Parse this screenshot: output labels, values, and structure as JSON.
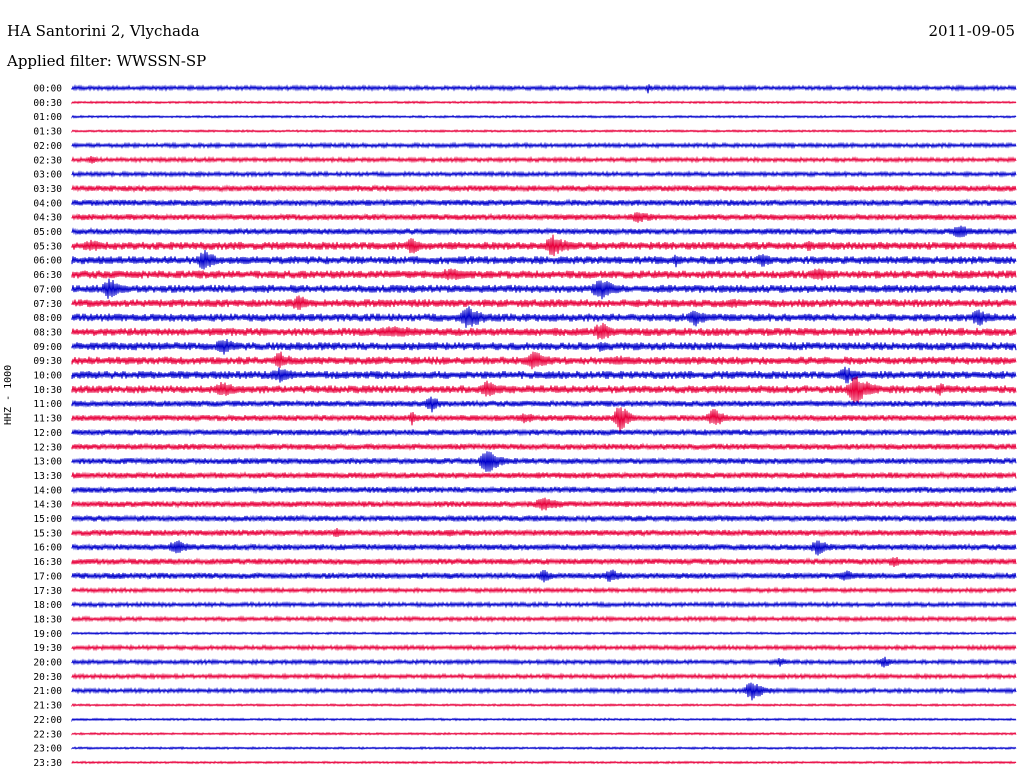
{
  "header": {
    "station": "HA Santorini 2, Vlychada",
    "date": "2011-09-05",
    "filter": "Applied filter: WWSSN-SP"
  },
  "chart_data": {
    "type": "line",
    "title": "HA Santorini 2, Vlychada",
    "ylabel": "HHZ - 1000",
    "xlabel": "",
    "grid": false,
    "colors": [
      "#0000cc",
      "#e8003c"
    ],
    "rows": [
      "00:00",
      "00:30",
      "01:00",
      "01:30",
      "02:00",
      "02:30",
      "03:00",
      "03:30",
      "04:00",
      "04:30",
      "05:00",
      "05:30",
      "06:00",
      "06:30",
      "07:00",
      "07:30",
      "08:00",
      "08:30",
      "09:00",
      "09:30",
      "10:00",
      "10:30",
      "11:00",
      "11:30",
      "12:00",
      "12:30",
      "13:00",
      "13:30",
      "14:00",
      "14:30",
      "15:00",
      "15:30",
      "16:00",
      "16:30",
      "17:00",
      "17:30",
      "18:00",
      "18:30",
      "19:00",
      "19:30",
      "20:00",
      "20:30",
      "21:00",
      "21:30",
      "22:00",
      "22:30",
      "23:00",
      "23:30"
    ],
    "noise_level": [
      2,
      1,
      1,
      1,
      2,
      2,
      2,
      3,
      3,
      3,
      3,
      4,
      4,
      4,
      4,
      4,
      4,
      4,
      4,
      4,
      4,
      4,
      3,
      3,
      3,
      3,
      3,
      3,
      3,
      3,
      3,
      3,
      3,
      3,
      3,
      2,
      2,
      2,
      1,
      2,
      2,
      2,
      2,
      1,
      1,
      1,
      1,
      1
    ],
    "events": [
      {
        "row": 0,
        "x": 0.61,
        "width": 0.01,
        "amp": 6
      },
      {
        "row": 5,
        "x": 0.02,
        "width": 0.02,
        "amp": 5
      },
      {
        "row": 9,
        "x": 0.6,
        "width": 0.07,
        "amp": 6
      },
      {
        "row": 10,
        "x": 0.94,
        "width": 0.04,
        "amp": 8
      },
      {
        "row": 11,
        "x": 0.02,
        "width": 0.06,
        "amp": 7
      },
      {
        "row": 11,
        "x": 0.36,
        "width": 0.03,
        "amp": 10
      },
      {
        "row": 11,
        "x": 0.51,
        "width": 0.05,
        "amp": 12
      },
      {
        "row": 11,
        "x": 0.78,
        "width": 0.03,
        "amp": 6
      },
      {
        "row": 12,
        "x": 0.14,
        "width": 0.04,
        "amp": 12
      },
      {
        "row": 12,
        "x": 0.64,
        "width": 0.02,
        "amp": 8
      },
      {
        "row": 12,
        "x": 0.73,
        "width": 0.04,
        "amp": 8
      },
      {
        "row": 13,
        "x": 0.4,
        "width": 0.08,
        "amp": 7
      },
      {
        "row": 13,
        "x": 0.79,
        "width": 0.05,
        "amp": 8
      },
      {
        "row": 14,
        "x": 0.04,
        "width": 0.04,
        "amp": 12
      },
      {
        "row": 14,
        "x": 0.56,
        "width": 0.05,
        "amp": 12
      },
      {
        "row": 15,
        "x": 0.24,
        "width": 0.04,
        "amp": 9
      },
      {
        "row": 15,
        "x": 0.7,
        "width": 0.04,
        "amp": 6
      },
      {
        "row": 16,
        "x": 0.42,
        "width": 0.05,
        "amp": 13
      },
      {
        "row": 16,
        "x": 0.66,
        "width": 0.04,
        "amp": 10
      },
      {
        "row": 16,
        "x": 0.96,
        "width": 0.04,
        "amp": 10
      },
      {
        "row": 17,
        "x": 0.34,
        "width": 0.12,
        "amp": 7
      },
      {
        "row": 17,
        "x": 0.56,
        "width": 0.04,
        "amp": 11
      },
      {
        "row": 18,
        "x": 0.16,
        "width": 0.04,
        "amp": 10
      },
      {
        "row": 18,
        "x": 0.56,
        "width": 0.02,
        "amp": 8
      },
      {
        "row": 19,
        "x": 0.22,
        "width": 0.04,
        "amp": 10
      },
      {
        "row": 19,
        "x": 0.49,
        "width": 0.05,
        "amp": 11
      },
      {
        "row": 19,
        "x": 0.58,
        "width": 0.06,
        "amp": 6
      },
      {
        "row": 20,
        "x": 0.22,
        "width": 0.06,
        "amp": 8
      },
      {
        "row": 20,
        "x": 0.82,
        "width": 0.04,
        "amp": 10
      },
      {
        "row": 21,
        "x": 0.16,
        "width": 0.05,
        "amp": 9
      },
      {
        "row": 21,
        "x": 0.44,
        "width": 0.04,
        "amp": 10
      },
      {
        "row": 21,
        "x": 0.83,
        "width": 0.05,
        "amp": 16
      },
      {
        "row": 21,
        "x": 0.92,
        "width": 0.03,
        "amp": 7
      },
      {
        "row": 22,
        "x": 0.38,
        "width": 0.03,
        "amp": 10
      },
      {
        "row": 23,
        "x": 0.36,
        "width": 0.02,
        "amp": 8
      },
      {
        "row": 23,
        "x": 0.48,
        "width": 0.05,
        "amp": 6
      },
      {
        "row": 23,
        "x": 0.58,
        "width": 0.03,
        "amp": 16
      },
      {
        "row": 23,
        "x": 0.68,
        "width": 0.04,
        "amp": 10
      },
      {
        "row": 26,
        "x": 0.44,
        "width": 0.04,
        "amp": 14
      },
      {
        "row": 29,
        "x": 0.5,
        "width": 0.07,
        "amp": 7
      },
      {
        "row": 31,
        "x": 0.28,
        "width": 0.02,
        "amp": 7
      },
      {
        "row": 31,
        "x": 0.4,
        "width": 0.02,
        "amp": 5
      },
      {
        "row": 32,
        "x": 0.11,
        "width": 0.04,
        "amp": 9
      },
      {
        "row": 32,
        "x": 0.79,
        "width": 0.04,
        "amp": 9
      },
      {
        "row": 33,
        "x": 0.87,
        "width": 0.03,
        "amp": 7
      },
      {
        "row": 34,
        "x": 0.5,
        "width": 0.03,
        "amp": 7
      },
      {
        "row": 34,
        "x": 0.57,
        "width": 0.04,
        "amp": 8
      },
      {
        "row": 34,
        "x": 0.82,
        "width": 0.05,
        "amp": 6
      },
      {
        "row": 40,
        "x": 0.75,
        "width": 0.02,
        "amp": 6
      },
      {
        "row": 40,
        "x": 0.86,
        "width": 0.03,
        "amp": 6
      },
      {
        "row": 42,
        "x": 0.72,
        "width": 0.04,
        "amp": 11
      }
    ]
  }
}
